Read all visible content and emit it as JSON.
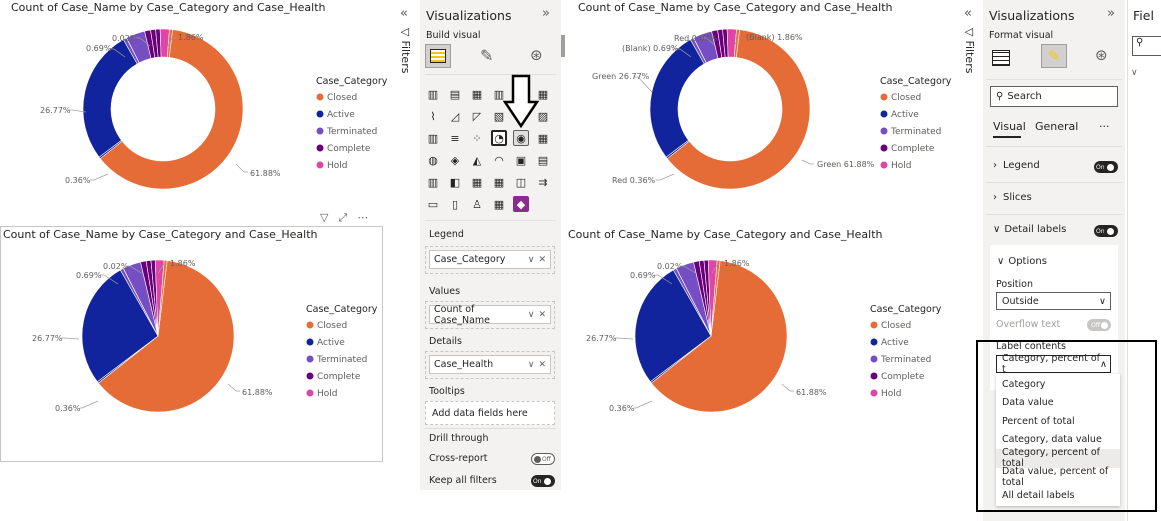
{
  "charts": [
    {
      "title": "Count of Case_Name by Case_Category and Case_Health",
      "type": "donut",
      "slice_labels": [
        "1.86%",
        "0.02%",
        "0.69%",
        "26.77%",
        "0.36%",
        "61.88%"
      ],
      "legend_title": "Case_Category",
      "legend": [
        "Closed",
        "Active",
        "Terminated",
        "Complete",
        "Hold"
      ]
    },
    {
      "title": "Count of Case_Name by Case_Category and Case_Health",
      "type": "pie",
      "slice_labels": [
        "1.86%",
        "0.02%",
        "0.69%",
        "26.77%",
        "0.36%",
        "61.88%"
      ],
      "legend_title": "Case_Category",
      "legend": [
        "Closed",
        "Active",
        "Terminated",
        "Complete",
        "Hold"
      ]
    },
    {
      "title": "Count of Case_Name by Case_Category and Case_Health",
      "type": "donut",
      "slice_labels": [
        "(Blank) 1.86%",
        "Red 0.02%",
        "(Blank) 0.69%",
        "Green 26.77%",
        "Red 0.36%",
        "Green 61.88%"
      ],
      "legend_title": "Case_Category",
      "legend": [
        "Closed",
        "Active",
        "Terminated",
        "Complete",
        "Hold"
      ]
    },
    {
      "title": "Count of Case_Name by Case_Category and Case_Health",
      "type": "pie",
      "slice_labels": [
        "1.86%",
        "0.02%",
        "0.69%",
        "26.77%",
        "0.36%",
        "61.88%"
      ],
      "legend_title": "Case_Category",
      "legend": [
        "Closed",
        "Active",
        "Terminated",
        "Complete",
        "Hold"
      ]
    }
  ],
  "chart_data": [
    {
      "type": "pie",
      "variant": "donut",
      "categories": [
        "Closed",
        "Active",
        "Terminated",
        "Complete",
        "Hold"
      ],
      "values": [
        61.88,
        26.77,
        0.69,
        0.36,
        1.86
      ],
      "title": "Count of Case_Name by Case_Category and Case_Health",
      "legend": "right"
    },
    {
      "type": "pie",
      "variant": "pie",
      "categories": [
        "Closed",
        "Active",
        "Terminated",
        "Complete",
        "Hold"
      ],
      "values": [
        61.88,
        26.77,
        0.69,
        0.36,
        1.86
      ],
      "title": "Count of Case_Name by Case_Category and Case_Health",
      "legend": "right"
    }
  ],
  "colors": {
    "Closed": "#E66C37",
    "Active": "#12239E",
    "Terminated": "#6B007B",
    "Complete": "#6B007B",
    "Hold": "#E044A7",
    "terminated_legend": "#744EC2",
    "complete_legend": "#6B007B"
  },
  "viz_pane": {
    "title": "Visualizations",
    "build_visual": "Build visual",
    "legend_label": "Legend",
    "legend_field": "Case_Category",
    "values_label": "Values",
    "values_field": "Count of Case_Name",
    "details_label": "Details",
    "details_field": "Case_Health",
    "tooltips_label": "Tooltips",
    "tooltips_placeholder": "Add data fields here",
    "drill_label": "Drill through",
    "cross_report": "Cross-report",
    "cross_report_state": "Off",
    "keep_filters": "Keep all filters",
    "keep_filters_state": "On"
  },
  "filters_label": "Filters",
  "fields_label": "Fiel",
  "format_pane": {
    "title": "Visualizations",
    "format_visual": "Format visual",
    "search_placeholder": "Search",
    "tab_visual": "Visual",
    "tab_general": "General",
    "more": "···",
    "legend": "Legend",
    "legend_state": "On",
    "slices": "Slices",
    "detail_labels": "Detail labels",
    "detail_labels_state": "On",
    "options": "Options",
    "position_label": "Position",
    "position_value": "Outside",
    "overflow_label": "Overflow text",
    "overflow_state": "Off",
    "label_contents_label": "Label contents",
    "label_contents_value": "Category, percent of t",
    "dropdown_options": [
      "Category",
      "Data value",
      "Percent of total",
      "Category, data value",
      "Category, percent of total",
      "Data value, percent of total",
      "All detail labels"
    ]
  }
}
